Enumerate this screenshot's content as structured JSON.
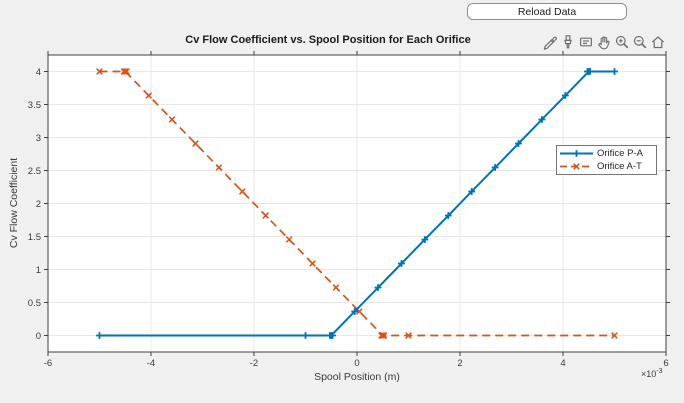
{
  "reload_button": {
    "label": "Reload Data"
  },
  "toolbar": {
    "icons": [
      "export",
      "brush",
      "datatips",
      "pan",
      "zoom-in",
      "zoom-out",
      "home"
    ]
  },
  "colors": {
    "figure_bg": "#f0f0f0",
    "plot_bg": "#ffffff",
    "grid": "#e8e8e8",
    "axis": "#404040",
    "tick_text": "#3a3a3a",
    "series_blue": "#0072BD",
    "series_orange": "#D95319"
  },
  "chart_data": {
    "type": "line",
    "title": "Cv Flow Coefficient vs. Spool Position for Each Orifice",
    "xlabel": "Spool Position (m)",
    "ylabel": "Cv Flow Coefficient",
    "x_exponent": {
      "base": "×10",
      "power": "-3"
    },
    "xlim": [
      -6,
      6
    ],
    "ylim": [
      -0.25,
      4.25
    ],
    "grid": true,
    "xticks": {
      "values": [
        -6,
        -4,
        -2,
        0,
        2,
        4,
        6
      ],
      "labels": [
        "-6",
        "-4",
        "-2",
        "0",
        "2",
        "4",
        "6"
      ]
    },
    "yticks": {
      "values": [
        0,
        0.5,
        1,
        1.5,
        2,
        2.5,
        3,
        3.5,
        4
      ],
      "labels": [
        "0",
        "0.5",
        "1",
        "1.5",
        "2",
        "2.5",
        "3",
        "3.5",
        "4"
      ]
    },
    "legend": {
      "position": "right-middle"
    },
    "x_units_note": "x values are in units of 1e-3 m as shown by the axis exponent",
    "series": [
      {
        "name": "Orifice P-A",
        "color": "#0072BD",
        "line_style": "solid",
        "marker": "plus",
        "points": [
          [
            -5,
            0
          ],
          [
            -1,
            0
          ],
          [
            -0.5,
            0
          ],
          [
            -0.045,
            0.364
          ],
          [
            0.409,
            0.727
          ],
          [
            0.864,
            1.091
          ],
          [
            1.318,
            1.455
          ],
          [
            1.773,
            1.818
          ],
          [
            2.227,
            2.182
          ],
          [
            2.682,
            2.545
          ],
          [
            3.136,
            2.909
          ],
          [
            3.591,
            3.273
          ],
          [
            4.045,
            3.636
          ],
          [
            4.5,
            4
          ],
          [
            5,
            4
          ]
        ],
        "bold_markers": [
          [
            -0.5,
            0
          ],
          [
            4.5,
            4
          ]
        ]
      },
      {
        "name": "Orifice A-T",
        "color": "#D95319",
        "line_style": "dashed",
        "marker": "x",
        "points": [
          [
            -5,
            4
          ],
          [
            -4.5,
            4
          ],
          [
            -4.045,
            3.636
          ],
          [
            -3.591,
            3.273
          ],
          [
            -3.136,
            2.909
          ],
          [
            -2.682,
            2.545
          ],
          [
            -2.227,
            2.182
          ],
          [
            -1.773,
            1.818
          ],
          [
            -1.318,
            1.455
          ],
          [
            -0.864,
            1.091
          ],
          [
            -0.409,
            0.727
          ],
          [
            0.045,
            0.364
          ],
          [
            0.5,
            0
          ],
          [
            1,
            0
          ],
          [
            5,
            0
          ]
        ],
        "bold_markers": [
          [
            -4.5,
            4
          ],
          [
            0.5,
            0
          ]
        ]
      }
    ]
  }
}
